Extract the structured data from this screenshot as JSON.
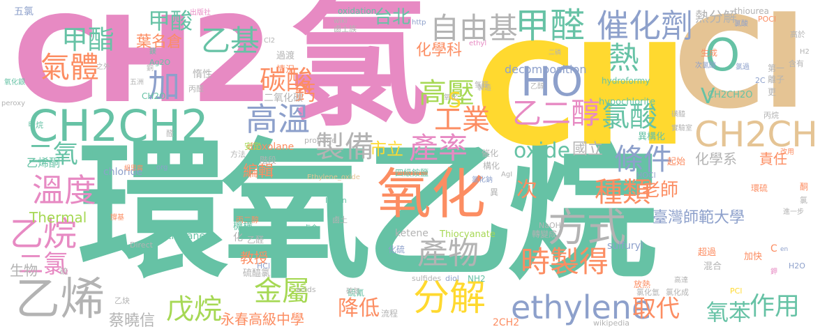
{
  "palette": {
    "teal": "#66c2a5",
    "orange": "#fc8d62",
    "blue": "#8da0cb",
    "pink": "#e78ac3",
    "lime": "#a6d854",
    "yellow": "#ffd92f",
    "tan": "#e5c494",
    "gray": "#b3b3b3"
  },
  "words": [
    {
      "text": "環氧乙烷",
      "color": "#66c2a5"
    },
    {
      "text": "CH2",
      "color": "#e78ac3"
    },
    {
      "text": "氯",
      "color": "#e78ac3"
    },
    {
      "text": "CH",
      "color": "#ffd92f"
    },
    {
      "text": "Cl",
      "color": "#e5c494"
    },
    {
      "text": "CH2CH2",
      "color": "#66c2a5"
    },
    {
      "text": "氧化",
      "color": "#fc8d62"
    },
    {
      "text": "分解",
      "color": "#ffd92f"
    },
    {
      "text": "乙烯",
      "color": "#b3b3b3"
    },
    {
      "text": "ethylene",
      "color": "#8da0cb"
    },
    {
      "text": "甲醛",
      "color": "#66c2a5"
    },
    {
      "text": "自由基",
      "color": "#b3b3b3"
    },
    {
      "text": "催化劑",
      "color": "#8da0cb"
    },
    {
      "text": "熱",
      "color": "#66c2a5"
    },
    {
      "text": "O",
      "color": "#66c2a5"
    },
    {
      "text": "HO",
      "color": "#8da0cb"
    },
    {
      "text": "CH2CH",
      "color": "#e5c494"
    },
    {
      "text": "乙二醇",
      "color": "#e78ac3"
    },
    {
      "text": "氯酸",
      "color": "#66c2a5"
    },
    {
      "text": "方式",
      "color": "#b3b3b3"
    },
    {
      "text": "產物",
      "color": "#b3b3b3"
    },
    {
      "text": "時製得",
      "color": "#fc8d62"
    },
    {
      "text": "種類",
      "color": "#fc8d62"
    },
    {
      "text": "條件",
      "color": "#8da0cb"
    },
    {
      "text": "產率",
      "color": "#e78ac3"
    },
    {
      "text": "製備",
      "color": "#b3b3b3"
    },
    {
      "text": "高溫",
      "color": "#8da0cb"
    },
    {
      "text": "高壓",
      "color": "#a6d854"
    },
    {
      "text": "工業",
      "color": "#fc8d62"
    },
    {
      "text": "碳酸",
      "color": "#fc8d62"
    },
    {
      "text": "加",
      "color": "#8da0cb"
    },
    {
      "text": "氣體",
      "color": "#fc8d62"
    },
    {
      "text": "甲酯",
      "color": "#66c2a5"
    },
    {
      "text": "甲酸",
      "color": "#66c2a5"
    },
    {
      "text": "乙基",
      "color": "#66c2a5"
    },
    {
      "text": "溫度",
      "color": "#e78ac3"
    },
    {
      "text": "乙烷",
      "color": "#e78ac3"
    },
    {
      "text": "二氯",
      "color": "#e78ac3"
    },
    {
      "text": "二氧",
      "color": "#66c2a5"
    },
    {
      "text": "金屬",
      "color": "#a6d854"
    },
    {
      "text": "戊烷",
      "color": "#a6d854"
    },
    {
      "text": "降低",
      "color": "#fc8d62"
    },
    {
      "text": "取代",
      "color": "#fc8d62"
    },
    {
      "text": "作用",
      "color": "#66c2a5"
    },
    {
      "text": "氧苯",
      "color": "#66c2a5"
    },
    {
      "text": "老師",
      "color": "#fc8d62"
    },
    {
      "text": "臺灣師範大學",
      "color": "#8da0cb"
    },
    {
      "text": "永春高級中學",
      "color": "#fc8d62"
    },
    {
      "text": "蔡曉信",
      "color": "#b3b3b3"
    },
    {
      "text": "次",
      "color": "#fc8d62"
    },
    {
      "text": "oxide",
      "color": "#66c2a5"
    },
    {
      "text": "國立",
      "color": "#b3b3b3"
    },
    {
      "text": "市立",
      "color": "#ffd92f"
    },
    {
      "text": "S",
      "color": "#ffd92f"
    },
    {
      "text": "V",
      "color": "#66c2a5"
    },
    {
      "text": "鈣",
      "color": "#fc8d62"
    },
    {
      "text": "台北",
      "color": "#66c2a5"
    },
    {
      "text": "化學科",
      "color": "#fc8d62"
    },
    {
      "text": "葉名倉",
      "color": "#fc8d62"
    },
    {
      "text": "熱分解",
      "color": "#b3b3b3"
    },
    {
      "text": "化學系",
      "color": "#b3b3b3"
    },
    {
      "text": "責任",
      "color": "#fc8d62"
    },
    {
      "text": "編輯",
      "color": "#fc8d62"
    },
    {
      "text": "教授",
      "color": "#fc8d62"
    },
    {
      "text": "Thermal",
      "color": "#a6d854"
    },
    {
      "text": "生物",
      "color": "#b3b3b3"
    },
    {
      "text": "乙烯酮",
      "color": "#66c2a5"
    },
    {
      "text": "五氯",
      "color": "#8da0cb"
    },
    {
      "text": "decomposition",
      "color": "#8da0cb"
    },
    {
      "text": "hypochlorite",
      "color": "#66c2a5"
    },
    {
      "text": "hydroformy",
      "color": "#66c2a5"
    },
    {
      "text": "chloride",
      "color": "#8da0cb"
    },
    {
      "text": "dioxolane",
      "color": "#fc8d62"
    },
    {
      "text": "thiiranes",
      "color": "#66c2a5"
    },
    {
      "text": "sulfuryl",
      "color": "#8da0cb"
    },
    {
      "text": "ketene",
      "color": "#b3b3b3"
    },
    {
      "text": "Thiocyanate",
      "color": "#a6d854"
    },
    {
      "text": "oxidation",
      "color": "#66c2a5"
    },
    {
      "text": "thiourea",
      "color": "#b3b3b3"
    },
    {
      "text": "propane",
      "color": "#b3b3b3"
    },
    {
      "text": "Ethylene_oxide",
      "color": "#e5c494"
    },
    {
      "text": "lation",
      "color": "#66c2a5"
    },
    {
      "text": "acids",
      "color": "#b3b3b3"
    },
    {
      "text": "sulfides",
      "color": "#b3b3b3"
    },
    {
      "text": "diol",
      "color": "#8da0cb"
    },
    {
      "text": "wikipedia",
      "color": "#b3b3b3"
    },
    {
      "text": "wiki",
      "color": "#b3b3b3"
    },
    {
      "text": "http",
      "color": "#8da0cb"
    },
    {
      "text": "ethyl",
      "color": "#e78ac3"
    },
    {
      "text": "peroxy",
      "color": "#b3b3b3"
    },
    {
      "text": "Direct",
      "color": "#b3b3b3"
    },
    {
      "text": "CH2O",
      "color": "#66c2a5"
    },
    {
      "text": "CH2CH2O",
      "color": "#66c2a5"
    },
    {
      "text": "2CH2",
      "color": "#fc8d62"
    },
    {
      "text": "NH2",
      "color": "#66c2a5"
    },
    {
      "text": "HCl",
      "color": "#8da0cb"
    },
    {
      "text": "HOCl",
      "color": "#8da0cb"
    },
    {
      "text": "NaOH",
      "color": "#b3b3b3"
    },
    {
      "text": "POCl",
      "color": "#fc8d62"
    },
    {
      "text": "PCl",
      "color": "#ffd92f"
    },
    {
      "text": "H2O",
      "color": "#8da0cb"
    },
    {
      "text": "Ag2O",
      "color": "#66c2a5"
    },
    {
      "text": "AgI",
      "color": "#b3b3b3"
    },
    {
      "text": "Cl2",
      "color": "#b3b3b3"
    },
    {
      "text": "NH",
      "color": "#66c2a5"
    },
    {
      "text": "org",
      "color": "#8da0cb"
    },
    {
      "text": "2C",
      "color": "#8da0cb"
    },
    {
      "text": "H2",
      "color": "#b3b3b3"
    },
    {
      "text": "C",
      "color": "#fc8d62"
    },
    {
      "text": "en",
      "color": "#8da0cb"
    },
    {
      "text": "二氧化碳",
      "color": "#b3b3b3"
    },
    {
      "text": "四級銨鹽",
      "color": "#66c2a5"
    },
    {
      "text": "異構化",
      "color": "#66c2a5"
    },
    {
      "text": "硫醯氯",
      "color": "#b3b3b3"
    },
    {
      "text": "轉變成",
      "color": "#b3b3b3"
    },
    {
      "text": "氯化鈉",
      "color": "#8da0cb"
    },
    {
      "text": "氧化銀",
      "color": "#66c2a5"
    },
    {
      "text": "丙二醇",
      "color": "#fc8d62"
    },
    {
      "text": "乙醛",
      "color": "#b3b3b3"
    },
    {
      "text": "甲烷",
      "color": "#66c2a5"
    },
    {
      "text": "乙醇",
      "color": "#b3b3b3"
    },
    {
      "text": "乙炔",
      "color": "#b3b3b3"
    },
    {
      "text": "丙烷",
      "color": "#b3b3b3"
    },
    {
      "text": "丙醛",
      "color": "#b3b3b3"
    },
    {
      "text": "鹵金",
      "color": "#66c2a5"
    },
    {
      "text": "鹵土",
      "color": "#b3b3b3"
    },
    {
      "text": "鹵土族",
      "color": "#b3b3b3"
    },
    {
      "text": "階段",
      "color": "#b3b3b3"
    },
    {
      "text": "安定",
      "color": "#a6d854"
    },
    {
      "text": "方法",
      "color": "#b3b3b3"
    },
    {
      "text": "過渡",
      "color": "#b3b3b3"
    },
    {
      "text": "情況",
      "color": "#fc8d62"
    },
    {
      "text": "惰性",
      "color": "#b3b3b3"
    },
    {
      "text": "機構",
      "color": "#66c2a5"
    },
    {
      "text": "化",
      "color": "#b3b3b3"
    },
    {
      "text": "構化",
      "color": "#b3b3b3"
    },
    {
      "text": "化硫",
      "color": "#8da0cb"
    },
    {
      "text": "硫氰",
      "color": "#66c2a5"
    },
    {
      "text": "流程",
      "color": "#b3b3b3"
    },
    {
      "text": "催化",
      "color": "#b3b3b3"
    },
    {
      "text": "異",
      "color": "#b3b3b3"
    },
    {
      "text": "起始",
      "color": "#fc8d62"
    },
    {
      "text": "超過",
      "color": "#fc8d62"
    },
    {
      "text": "混合",
      "color": "#b3b3b3"
    },
    {
      "text": "加快",
      "color": "#fc8d62"
    },
    {
      "text": "放熱",
      "color": "#fc8d62"
    },
    {
      "text": "氯化氫",
      "color": "#b3b3b3"
    },
    {
      "text": "氯化成",
      "color": "#b3b3b3"
    },
    {
      "text": "高達",
      "color": "#b3b3b3"
    },
    {
      "text": "實驗室",
      "color": "#b3b3b3"
    },
    {
      "text": "磺醯",
      "color": "#b3b3b3"
    },
    {
      "text": "第一",
      "color": "#b3b3b3"
    },
    {
      "text": "離子",
      "color": "#b3b3b3"
    },
    {
      "text": "更",
      "color": "#b3b3b3"
    },
    {
      "text": "含有",
      "color": "#b3b3b3"
    },
    {
      "text": "高於",
      "color": "#b3b3b3"
    },
    {
      "text": "生成",
      "color": "#fc8d62"
    },
    {
      "text": "次氯酸",
      "color": "#8da0cb"
    },
    {
      "text": "氯過",
      "color": "#8da0cb"
    },
    {
      "text": "環硫",
      "color": "#fc8d62"
    },
    {
      "text": "硫",
      "color": "#b3b3b3"
    },
    {
      "text": "硫氫",
      "color": "#b3b3b3"
    },
    {
      "text": "醛",
      "color": "#b3b3b3"
    },
    {
      "text": "氧化",
      "color": "#b3b3b3"
    },
    {
      "text": "氫醛",
      "color": "#b3b3b3"
    },
    {
      "text": "二磷",
      "color": "#b3b3b3"
    },
    {
      "text": "製造",
      "color": "#b3b3b3"
    },
    {
      "text": "出版社",
      "color": "#e78ac3"
    },
    {
      "text": "鎂",
      "color": "#66c2a5"
    },
    {
      "text": "銅",
      "color": "#b3b3b3"
    },
    {
      "text": "五洲",
      "color": "#b3b3b3"
    },
    {
      "text": "之外",
      "color": "#b3b3b3"
    },
    {
      "text": "氯酸",
      "color": "#8da0cb"
    },
    {
      "text": "撐基",
      "color": "#fc8d62"
    },
    {
      "text": "組思腐",
      "color": "#fc8d62"
    },
    {
      "text": "進一步",
      "color": "#b3b3b3"
    },
    {
      "text": "改用",
      "color": "#fc8d62"
    },
    {
      "text": "鉀",
      "color": "#e78ac3"
    },
    {
      "text": "酮",
      "color": "#fc8d62"
    },
    {
      "text": "氯",
      "color": "#b3b3b3"
    }
  ]
}
